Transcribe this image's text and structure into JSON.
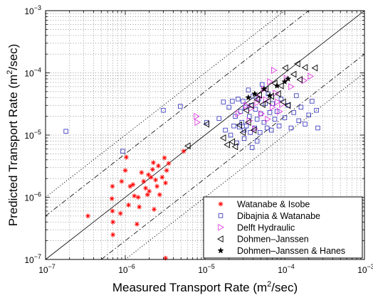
{
  "chart_data": {
    "type": "scatter",
    "xlabel": "Measured Transport Rate (m²/sec)",
    "ylabel": "Predicted Transport Rate (m²/sec)",
    "xscale": "log",
    "yscale": "log",
    "xlim": [
      1e-07,
      0.001
    ],
    "ylim": [
      1e-07,
      0.001
    ],
    "x_ticks": [
      {
        "value": 1e-07,
        "label": "10",
        "exp": "−7"
      },
      {
        "value": 1e-06,
        "label": "10",
        "exp": "−6"
      },
      {
        "value": 1e-05,
        "label": "10",
        "exp": "−5"
      },
      {
        "value": 0.0001,
        "label": "10",
        "exp": "−4"
      },
      {
        "value": 0.001,
        "label": "10",
        "exp": "−3"
      }
    ],
    "y_ticks": [
      {
        "value": 1e-07,
        "label": "10",
        "exp": "−7"
      },
      {
        "value": 1e-06,
        "label": "10",
        "exp": "−6"
      },
      {
        "value": 1e-05,
        "label": "10",
        "exp": "−5"
      },
      {
        "value": 0.0001,
        "label": "10",
        "exp": "−4"
      },
      {
        "value": 0.001,
        "label": "10",
        "exp": "−3"
      }
    ],
    "grid": true,
    "legend_position": "bottom-right",
    "reference_lines": [
      {
        "style": "solid",
        "factor": 1
      },
      {
        "style": "dashdot",
        "factor": 5
      },
      {
        "style": "dashdot",
        "factor": 0.2
      },
      {
        "style": "dotted",
        "factor": 10
      },
      {
        "style": "dotted",
        "factor": 0.1
      }
    ],
    "series": [
      {
        "name": "Watanabe & Isobe",
        "marker": "asterisk",
        "color": "#ff0000",
        "points": [
          [
            3.4e-07,
            5e-07
          ],
          [
            6.9e-07,
            1.5e-06
          ],
          [
            6.8e-07,
            9.5e-07
          ],
          [
            6.9e-07,
            6e-07
          ],
          [
            7e-07,
            4e-07
          ],
          [
            7e-07,
            2.5e-07
          ],
          [
            8.7e-07,
            5.5e-07
          ],
          [
            9e-07,
            1.8e-06
          ],
          [
            1e-06,
            2.7e-06
          ],
          [
            1.03e-06,
            4.4e-06
          ],
          [
            1.1e-06,
            7.5e-07
          ],
          [
            1.15e-06,
            1.5e-06
          ],
          [
            1.25e-06,
            1.6e-06
          ],
          [
            1.3e-06,
            1.05e-06
          ],
          [
            1.4e-06,
            3.7e-07
          ],
          [
            1.45e-06,
            1e-06
          ],
          [
            1.5e-06,
            7e-07
          ],
          [
            1.6e-06,
            2.5e-06
          ],
          [
            1.7e-06,
            1.8e-06
          ],
          [
            1.8e-06,
            1.4e-06
          ],
          [
            1.9e-06,
            1.1e-06
          ],
          [
            1.95e-06,
            2.3e-06
          ],
          [
            2e-06,
            1.25e-06
          ],
          [
            2.1e-06,
            2.1e-06
          ],
          [
            2.2e-06,
            2.8e-06
          ],
          [
            2.25e-06,
            3.6e-06
          ],
          [
            2.3e-06,
            6.4e-07
          ],
          [
            2.4e-06,
            1.9e-06
          ],
          [
            2.5e-06,
            1.5e-06
          ],
          [
            2.6e-06,
            3.2e-06
          ],
          [
            2.7e-06,
            1.1e-06
          ],
          [
            2.9e-06,
            2.1e-06
          ],
          [
            3.1e-06,
            4.3e-06
          ],
          [
            3.2e-06,
            1.7e-06
          ],
          [
            3.3e-06,
            2.7e-06
          ],
          [
            3.5e-06,
            3.5e-06
          ],
          [
            3.2e-06,
            1.05e-07
          ],
          [
            5.4e-06,
            5.5e-06
          ]
        ]
      },
      {
        "name": "Dibajnia & Watanabe",
        "marker": "square",
        "color": "#4040c0",
        "points": [
          [
            1.8e-07,
            1.15e-05
          ],
          [
            9.3e-07,
            5.5e-06
          ],
          [
            3e-06,
            2.5e-05
          ],
          [
            4.9e-06,
            2.9e-05
          ],
          [
            1.05e-05,
            1.6e-05
          ],
          [
            1.5e-05,
            1.85e-05
          ],
          [
            1.7e-05,
            3.4e-05
          ],
          [
            1.8e-05,
            1.2e-05
          ],
          [
            2e-05,
            2.8e-05
          ],
          [
            2.1e-05,
            1e-05
          ],
          [
            2.2e-05,
            3.5e-05
          ],
          [
            2.3e-05,
            1.4e-05
          ],
          [
            2.4e-05,
            2e-05
          ],
          [
            2.5e-05,
            7.5e-06
          ],
          [
            2.6e-05,
            3.8e-05
          ],
          [
            2.7e-05,
            1.35e-05
          ],
          [
            2.8e-05,
            2.4e-05
          ],
          [
            2.9e-05,
            1.6e-05
          ],
          [
            3e-05,
            3.5e-05
          ],
          [
            3.1e-05,
            1.2e-05
          ],
          [
            3.2e-05,
            2.8e-05
          ],
          [
            3.3e-05,
            1.4e-05
          ],
          [
            3.5e-05,
            5.3e-05
          ],
          [
            3.6e-05,
            2e-05
          ],
          [
            3.7e-05,
            1.1e-05
          ],
          [
            3.8e-05,
            3e-05
          ],
          [
            3.9e-05,
            6.3e-06
          ],
          [
            4e-05,
            4.2e-05
          ],
          [
            4.2e-05,
            1.3e-05
          ],
          [
            4.3e-05,
            2.6e-05
          ],
          [
            4.5e-05,
            1.8e-05
          ],
          [
            4.7e-05,
            3.8e-05
          ],
          [
            4.9e-05,
            1.1e-05
          ],
          [
            5e-05,
            2.2e-05
          ],
          [
            5.2e-05,
            6.5e-05
          ],
          [
            5.5e-05,
            1.6e-05
          ],
          [
            5.7e-05,
            3.2e-05
          ],
          [
            6e-05,
            1.3e-05
          ],
          [
            6.2e-05,
            4.6e-05
          ],
          [
            6.5e-05,
            2.3e-05
          ],
          [
            6.8e-05,
            1.2e-05
          ],
          [
            7e-05,
            3.2e-05
          ],
          [
            7.5e-05,
            1.8e-05
          ],
          [
            8e-05,
            2.4e-05
          ],
          [
            8.5e-05,
            1.4e-05
          ],
          [
            9e-05,
            3.8e-05
          ],
          [
            0.0001,
            1.9e-05
          ],
          [
            0.00011,
            3e-05
          ],
          [
            0.00012,
            1.3e-05
          ],
          [
            0.00013,
            2.3e-05
          ],
          [
            0.00014,
            4.3e-05
          ],
          [
            0.00015,
            1.7e-05
          ],
          [
            0.00016,
            2.8e-05
          ],
          [
            0.00018,
            1.5e-05
          ],
          [
            0.0002,
            2.1e-05
          ],
          [
            0.00022,
            3.5e-05
          ],
          [
            0.00025,
            2.5e-05
          ],
          [
            0.00026,
            1.3e-05
          ],
          [
            3.1e-05,
            8.8e-06
          ],
          [
            4.5e-05,
            8e-06
          ]
        ]
      },
      {
        "name": "Delft Hydraulic",
        "marker": "triangle-right",
        "color": "#e040e0",
        "points": [
          [
            7.8e-06,
            2e-05
          ],
          [
            8e-06,
            1.6e-05
          ],
          [
            2.6e-05,
            2.2e-05
          ],
          [
            3.3e-05,
            3e-05
          ],
          [
            3.6e-05,
            1.7e-05
          ],
          [
            3.8e-05,
            2.7e-05
          ],
          [
            4.2e-05,
            1.25e-05
          ],
          [
            4.5e-05,
            3.3e-05
          ],
          [
            4.8e-05,
            4e-05
          ],
          [
            5.1e-05,
            2.2e-05
          ],
          [
            5.5e-05,
            5.5e-05
          ],
          [
            5.8e-05,
            3.7e-05
          ],
          [
            6.1e-05,
            1.8e-05
          ],
          [
            6.5e-05,
            7.2e-05
          ],
          [
            7e-05,
            2.8e-05
          ],
          [
            7.3e-05,
            0.00011
          ],
          [
            7.7e-05,
            4.7e-05
          ],
          [
            8.1e-05,
            3.4e-05
          ],
          [
            8.6e-05,
            2.4e-05
          ],
          [
            9.2e-05,
            3.1e-05
          ],
          [
            0.000105,
            8.2e-05
          ],
          [
            0.00012,
            6e-05
          ],
          [
            0.000175,
            7.5e-05
          ],
          [
            0.00021,
            8.8e-05
          ]
        ]
      },
      {
        "name": "Dohmen–Janssen",
        "marker": "triangle-left",
        "color": "#000000",
        "points": [
          [
            6.1e-06,
            6.7e-06
          ],
          [
            1.05e-05,
            1.5e-05
          ],
          [
            1.7e-05,
            9e-06
          ],
          [
            1.9e-05,
            7e-06
          ],
          [
            2.2e-05,
            7.8e-06
          ],
          [
            2.4e-05,
            6.5e-06
          ],
          [
            2.7e-05,
            1.45e-05
          ],
          [
            3e-05,
            1.1e-05
          ],
          [
            3.3e-05,
            2.5e-05
          ],
          [
            3.5e-05,
            1.6e-05
          ],
          [
            3.8e-05,
            3e-05
          ],
          [
            4.1e-05,
            1.2e-05
          ],
          [
            4.5e-05,
            3.7e-05
          ],
          [
            4.8e-05,
            4.4e-05
          ],
          [
            5.3e-05,
            3.1e-05
          ],
          [
            5.8e-05,
            5.5e-05
          ],
          [
            6.2e-05,
            3.5e-05
          ],
          [
            6.8e-05,
            4.2e-05
          ],
          [
            7.5e-05,
            6.8e-05
          ],
          [
            8.3e-05,
            4.6e-05
          ],
          [
            9e-05,
            6.2e-05
          ],
          [
            9.6e-05,
            3.4e-05
          ],
          [
            0.000102,
            0.00012
          ],
          [
            0.00011,
            3e-05
          ],
          [
            0.00013,
            9.5e-05
          ],
          [
            0.000145,
            0.00014
          ],
          [
            0.00018,
            0.000122
          ],
          [
            0.00024,
            0.00012
          ],
          [
            0.000155,
            7.8e-05
          ]
        ]
      },
      {
        "name": "Dohmen–Janssen & Hanes",
        "marker": "star",
        "color": "#000000",
        "points": [
          [
            3.5e-05,
            4e-05
          ],
          [
            4.2e-05,
            4.6e-05
          ],
          [
            5.5e-05,
            5.5e-05
          ],
          [
            6.5e-05,
            4.3e-05
          ],
          [
            8e-05,
            6.2e-05
          ],
          [
            0.0001,
            7.2e-05
          ],
          [
            0.00011,
            8e-05
          ]
        ]
      }
    ]
  }
}
